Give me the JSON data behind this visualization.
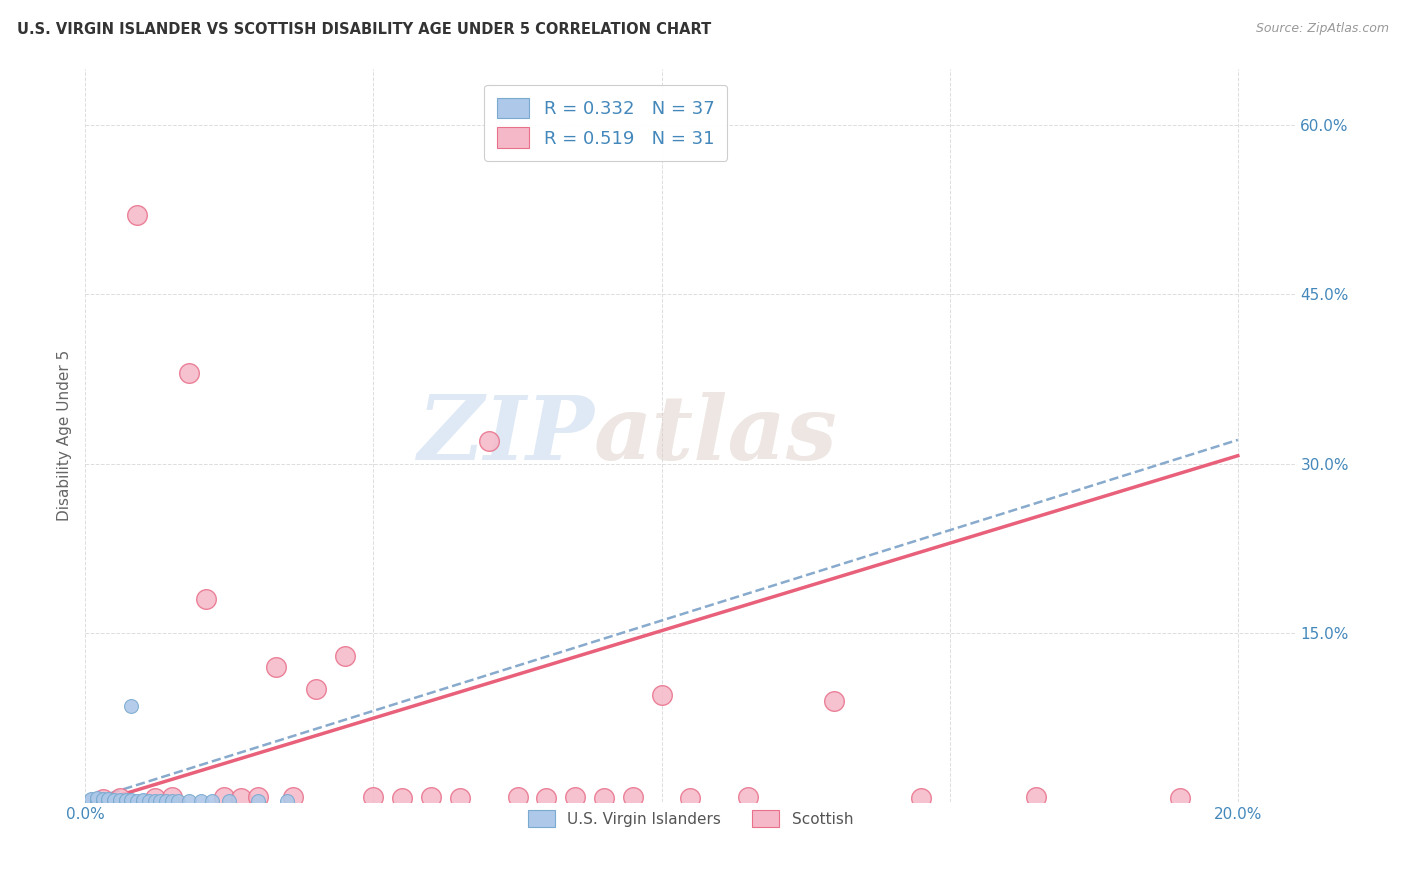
{
  "title": "U.S. VIRGIN ISLANDER VS SCOTTISH DISABILITY AGE UNDER 5 CORRELATION CHART",
  "source": "Source: ZipAtlas.com",
  "ylabel": "Disability Age Under 5",
  "watermark_zip": "ZIP",
  "watermark_atlas": "atlas",
  "xlim": [
    0.0,
    0.21
  ],
  "ylim": [
    0.0,
    0.65
  ],
  "xticks": [
    0.0,
    0.05,
    0.1,
    0.15,
    0.2
  ],
  "xtick_labels": [
    "0.0%",
    "",
    "",
    "",
    "20.0%"
  ],
  "ytick_positions": [
    0.0,
    0.15,
    0.3,
    0.45,
    0.6
  ],
  "ytick_labels": [
    "",
    "15.0%",
    "30.0%",
    "45.0%",
    "60.0%"
  ],
  "blue_scatter_color": "#adc8e8",
  "blue_edge_color": "#7aaad0",
  "pink_scatter_color": "#f5b8c8",
  "pink_edge_color": "#e8708a",
  "trend_blue_color": "#88aacc",
  "trend_pink_color": "#e8607a",
  "grid_color": "#dddddd",
  "title_color": "#333333",
  "source_color": "#999999",
  "tick_color": "#4488bb",
  "ylabel_color": "#666666",
  "vi_x": [
    0.001,
    0.001,
    0.001,
    0.002,
    0.002,
    0.002,
    0.002,
    0.003,
    0.003,
    0.003,
    0.004,
    0.004,
    0.004,
    0.005,
    0.005,
    0.006,
    0.006,
    0.007,
    0.007,
    0.008,
    0.008,
    0.009,
    0.01,
    0.01,
    0.011,
    0.012,
    0.013,
    0.014,
    0.015,
    0.016,
    0.018,
    0.02,
    0.022,
    0.025,
    0.03,
    0.035,
    0.008
  ],
  "vi_y": [
    0.001,
    0.002,
    0.003,
    0.001,
    0.002,
    0.003,
    0.004,
    0.001,
    0.002,
    0.003,
    0.001,
    0.002,
    0.003,
    0.001,
    0.002,
    0.001,
    0.002,
    0.001,
    0.002,
    0.001,
    0.002,
    0.001,
    0.001,
    0.002,
    0.001,
    0.001,
    0.001,
    0.001,
    0.001,
    0.001,
    0.001,
    0.001,
    0.001,
    0.001,
    0.001,
    0.001,
    0.085
  ],
  "sc_x": [
    0.003,
    0.006,
    0.009,
    0.012,
    0.015,
    0.018,
    0.021,
    0.024,
    0.027,
    0.03,
    0.033,
    0.036,
    0.04,
    0.045,
    0.05,
    0.055,
    0.06,
    0.065,
    0.07,
    0.075,
    0.08,
    0.085,
    0.09,
    0.095,
    0.1,
    0.105,
    0.115,
    0.13,
    0.145,
    0.165,
    0.19
  ],
  "sc_y": [
    0.003,
    0.004,
    0.52,
    0.004,
    0.005,
    0.38,
    0.18,
    0.005,
    0.004,
    0.005,
    0.12,
    0.005,
    0.1,
    0.13,
    0.005,
    0.004,
    0.005,
    0.004,
    0.32,
    0.005,
    0.004,
    0.005,
    0.004,
    0.005,
    0.095,
    0.004,
    0.005,
    0.09,
    0.004,
    0.005,
    0.004
  ],
  "vi_trend_slope": 1.6,
  "vi_trend_intercept": 0.002,
  "sc_trend_slope": 1.55,
  "sc_trend_intercept": -0.005
}
